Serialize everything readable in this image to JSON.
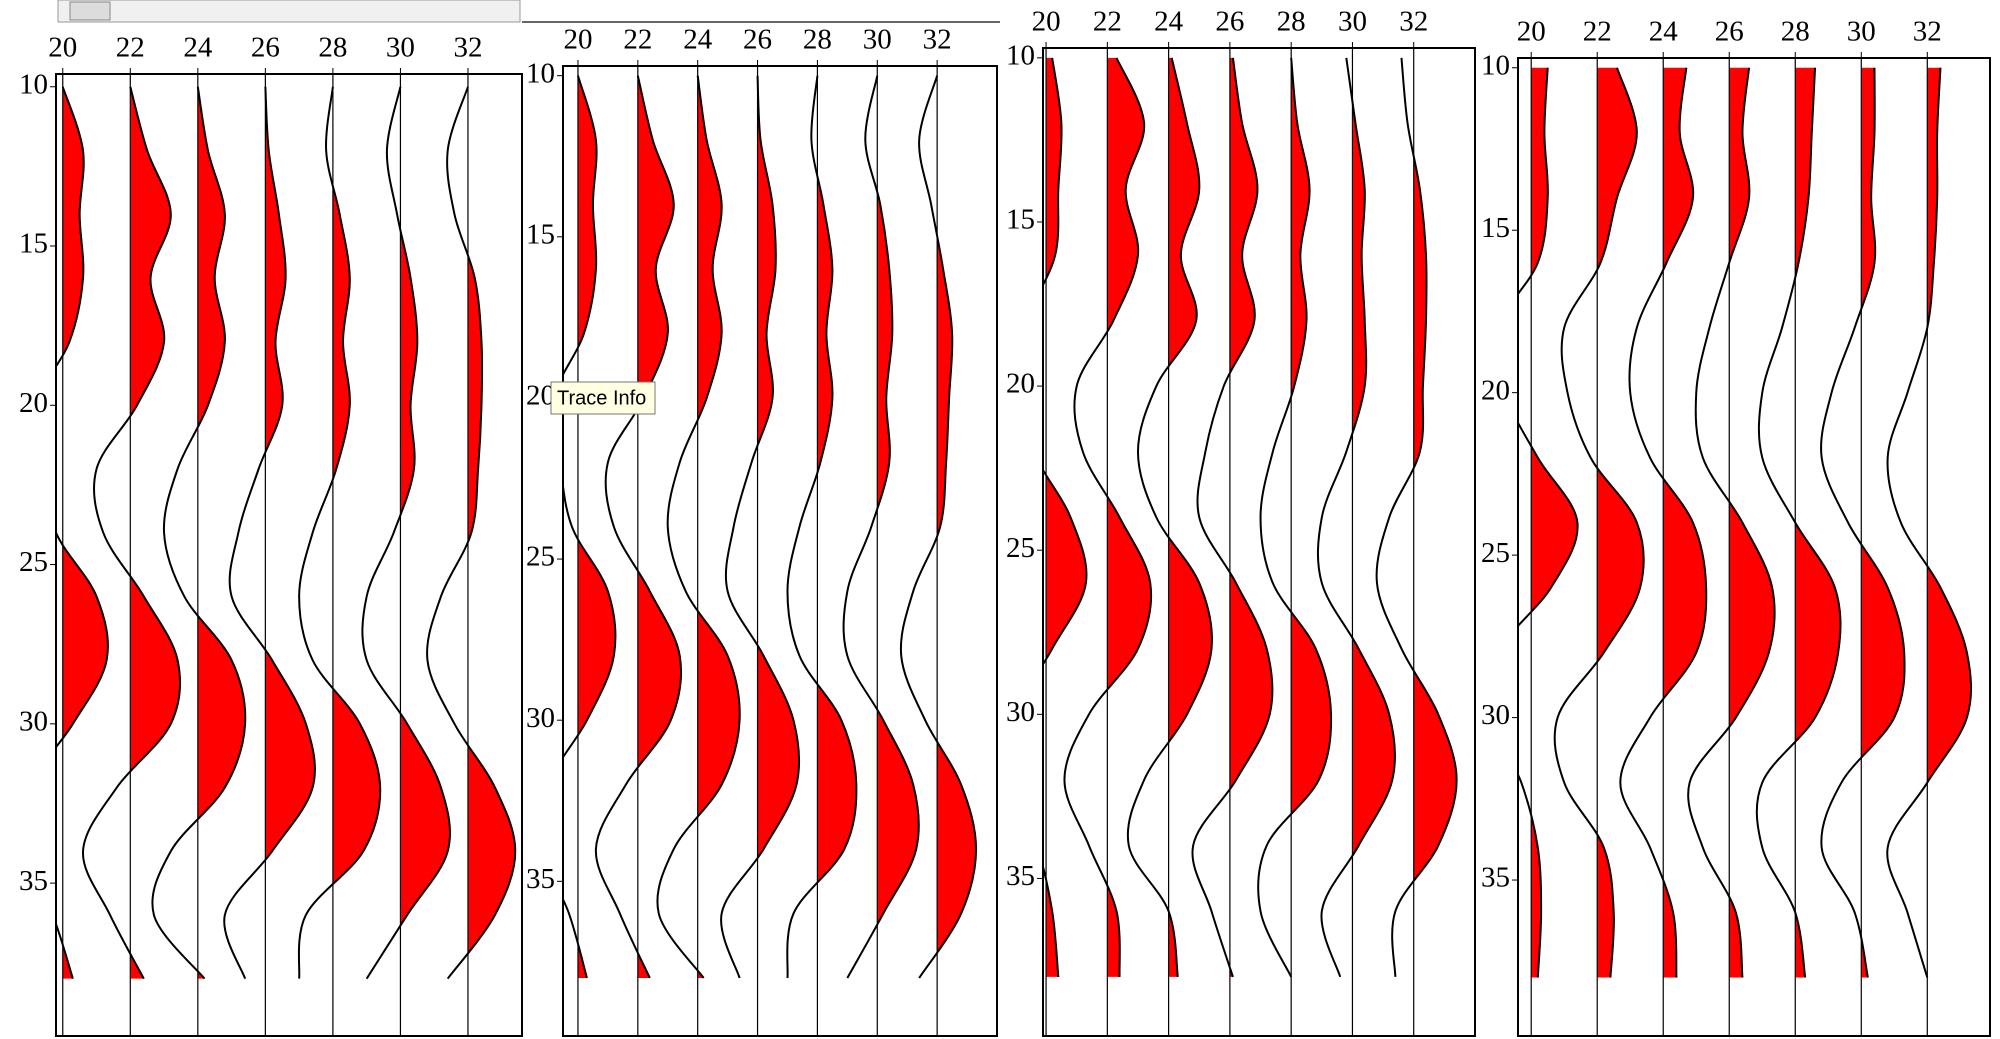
{
  "chart_data": [
    {
      "type": "wiggle",
      "xlim": [
        19.8,
        33.6
      ],
      "ylim": [
        9.6,
        39.8
      ],
      "xticks": [
        20,
        22,
        24,
        26,
        28,
        30,
        32
      ],
      "yticks": [
        10,
        15,
        20,
        25,
        30,
        35
      ],
      "color": "#ff0000",
      "depths": [
        10,
        12,
        14,
        16,
        18,
        20,
        22,
        24,
        26,
        28,
        30,
        32,
        34,
        36,
        38
      ],
      "traces": [
        {
          "offset": 20,
          "values": [
            0,
            0.6,
            0.5,
            0.6,
            0.2,
            -0.8,
            -0.6,
            -0.2,
            1.0,
            1.3,
            0.3,
            -1.0,
            -1.2,
            -0.3,
            0.3
          ]
        },
        {
          "offset": 22,
          "values": [
            0,
            0.5,
            1.2,
            0.6,
            1.0,
            0.2,
            -1.0,
            -0.8,
            0.4,
            1.4,
            1.2,
            -0.4,
            -1.4,
            -0.6,
            0.4
          ]
        },
        {
          "offset": 24,
          "values": [
            0,
            0.3,
            0.8,
            0.5,
            0.8,
            0.3,
            -0.6,
            -1.0,
            -0.4,
            1.0,
            1.4,
            0.8,
            -0.8,
            -1.3,
            0.2
          ]
        },
        {
          "offset": 26,
          "values": [
            0,
            0.1,
            0.4,
            0.6,
            0.3,
            0.5,
            -0.2,
            -0.8,
            -1.0,
            0.2,
            1.2,
            1.4,
            0.2,
            -1.2,
            -0.6
          ]
        },
        {
          "offset": 28,
          "values": [
            0,
            -0.2,
            0.2,
            0.5,
            0.3,
            0.5,
            0.1,
            -0.6,
            -1.0,
            -0.6,
            0.8,
            1.4,
            0.9,
            -0.8,
            -1.0
          ]
        },
        {
          "offset": 30,
          "values": [
            0,
            -0.4,
            -0.1,
            0.3,
            0.5,
            0.3,
            0.4,
            -0.2,
            -1.0,
            -1.0,
            0.2,
            1.2,
            1.4,
            0.2,
            -1.0
          ]
        },
        {
          "offset": 32,
          "values": [
            0,
            -0.6,
            -0.4,
            0.2,
            0.4,
            0.4,
            0.3,
            0.1,
            -0.8,
            -1.2,
            -0.4,
            0.8,
            1.4,
            0.8,
            -0.6
          ]
        }
      ]
    },
    {
      "type": "wiggle",
      "xlim": [
        19.5,
        34.0
      ],
      "ylim": [
        9.7,
        39.8
      ],
      "xticks": [
        20,
        22,
        24,
        26,
        28,
        30,
        32
      ],
      "yticks": [
        10,
        15,
        20,
        25,
        30,
        35
      ],
      "color": "#ff0000",
      "depths": [
        10,
        12,
        14,
        16,
        18,
        20,
        22,
        24,
        26,
        28,
        30,
        32,
        34,
        36,
        38
      ],
      "traces": [
        {
          "offset": 20,
          "values": [
            0,
            0.6,
            0.5,
            0.6,
            0.2,
            -0.8,
            -0.6,
            -0.2,
            1.0,
            1.2,
            0.3,
            -1.0,
            -1.2,
            -0.3,
            0.3
          ]
        },
        {
          "offset": 22,
          "values": [
            0,
            0.5,
            1.2,
            0.6,
            1.0,
            0.2,
            -1.0,
            -0.8,
            0.4,
            1.4,
            1.1,
            -0.4,
            -1.4,
            -0.6,
            0.4
          ]
        },
        {
          "offset": 24,
          "values": [
            0,
            0.3,
            0.8,
            0.5,
            0.8,
            0.3,
            -0.6,
            -1.0,
            -0.4,
            1.0,
            1.4,
            0.8,
            -0.8,
            -1.3,
            0.2
          ]
        },
        {
          "offset": 26,
          "values": [
            0,
            0.1,
            0.5,
            0.6,
            0.3,
            0.5,
            -0.2,
            -0.8,
            -1.0,
            0.2,
            1.2,
            1.3,
            0.2,
            -1.2,
            -0.6
          ]
        },
        {
          "offset": 28,
          "values": [
            0,
            -0.2,
            0.2,
            0.5,
            0.3,
            0.5,
            0.1,
            -0.6,
            -1.0,
            -0.6,
            0.8,
            1.3,
            0.9,
            -0.8,
            -1.0
          ]
        },
        {
          "offset": 30,
          "values": [
            0,
            -0.4,
            0.1,
            0.4,
            0.5,
            0.3,
            0.4,
            -0.2,
            -1.0,
            -1.0,
            0.2,
            1.2,
            1.3,
            0.2,
            -1.0
          ]
        },
        {
          "offset": 32,
          "values": [
            0,
            -0.6,
            -0.2,
            0.2,
            0.5,
            0.4,
            0.3,
            0.1,
            -0.8,
            -1.2,
            -0.4,
            0.8,
            1.3,
            0.8,
            -0.6
          ]
        }
      ]
    },
    {
      "type": "wiggle",
      "xlim": [
        19.9,
        34.0
      ],
      "ylim": [
        9.7,
        39.8
      ],
      "xticks": [
        20,
        22,
        24,
        26,
        28,
        30,
        32
      ],
      "yticks": [
        10,
        15,
        20,
        25,
        30,
        35
      ],
      "color": "#ff0000",
      "depths": [
        10,
        12,
        14,
        16,
        18,
        20,
        22,
        24,
        26,
        28,
        30,
        32,
        34,
        36,
        38
      ],
      "traces": [
        {
          "offset": 20,
          "values": [
            0.2,
            0.5,
            0.4,
            0.3,
            -0.6,
            -0.8,
            -0.4,
            0.8,
            1.3,
            0.2,
            -1.0,
            -1.2,
            -0.3,
            0.2,
            0.4
          ]
        },
        {
          "offset": 22,
          "values": [
            0.3,
            1.2,
            0.6,
            1.0,
            0.2,
            -1.0,
            -0.8,
            0.4,
            1.4,
            1.0,
            -0.6,
            -1.4,
            -0.6,
            0.3,
            0.4
          ]
        },
        {
          "offset": 24,
          "values": [
            0.1,
            0.6,
            1.0,
            0.4,
            0.9,
            -0.4,
            -1.0,
            -0.4,
            1.0,
            1.4,
            0.6,
            -0.8,
            -1.3,
            0.0,
            0.3
          ]
        },
        {
          "offset": 26,
          "values": [
            0.1,
            0.4,
            0.9,
            0.4,
            0.8,
            -0.2,
            -0.8,
            -1.0,
            0.2,
            1.2,
            1.3,
            0.2,
            -1.2,
            -0.6,
            0.1
          ]
        },
        {
          "offset": 28,
          "values": [
            0.0,
            0.2,
            0.6,
            0.3,
            0.5,
            0.1,
            -0.6,
            -1.0,
            -0.6,
            0.8,
            1.3,
            0.9,
            -0.8,
            -1.0,
            0.0
          ]
        },
        {
          "offset": 30,
          "values": [
            -0.2,
            0.1,
            0.4,
            0.3,
            0.4,
            0.4,
            -0.2,
            -1.0,
            -1.0,
            0.2,
            1.2,
            1.3,
            0.2,
            -1.0,
            -0.4
          ]
        },
        {
          "offset": 32,
          "values": [
            -0.4,
            -0.2,
            0.2,
            0.4,
            0.4,
            0.3,
            0.2,
            -0.8,
            -1.2,
            -0.4,
            0.8,
            1.4,
            0.8,
            -0.6,
            -0.6
          ]
        }
      ]
    },
    {
      "type": "wiggle",
      "xlim": [
        19.6,
        33.9
      ],
      "ylim": [
        9.7,
        39.8
      ],
      "xticks": [
        20,
        22,
        24,
        26,
        28,
        30,
        32
      ],
      "yticks": [
        10,
        15,
        20,
        25,
        30,
        35
      ],
      "color": "#ff0000",
      "depths": [
        10,
        12,
        14,
        16,
        18,
        20,
        22,
        24,
        26,
        28,
        30,
        32,
        34,
        36,
        38
      ],
      "traces": [
        {
          "offset": 20,
          "values": [
            0.5,
            0.4,
            0.5,
            0.2,
            -1.0,
            -0.8,
            0.2,
            1.4,
            0.6,
            -1.0,
            -1.2,
            -0.3,
            0.2,
            0.3,
            0.2
          ]
        },
        {
          "offset": 22,
          "values": [
            0.6,
            1.2,
            0.6,
            0.1,
            -1.0,
            -0.9,
            -0.2,
            1.2,
            1.3,
            0.2,
            -1.2,
            -1.0,
            0.2,
            0.5,
            0.4
          ]
        },
        {
          "offset": 24,
          "values": [
            0.7,
            0.5,
            0.9,
            0.1,
            -0.8,
            -1.0,
            -0.4,
            0.9,
            1.3,
            1.0,
            -0.4,
            -1.3,
            -0.4,
            0.3,
            0.4
          ]
        },
        {
          "offset": 26,
          "values": [
            0.6,
            0.4,
            0.6,
            0.0,
            -0.6,
            -1.0,
            -0.8,
            0.4,
            1.3,
            1.2,
            0.2,
            -1.2,
            -0.8,
            0.2,
            0.4
          ]
        },
        {
          "offset": 28,
          "values": [
            0.6,
            0.5,
            0.4,
            0.1,
            -0.4,
            -1.0,
            -1.0,
            0.0,
            1.2,
            1.3,
            0.6,
            -1.0,
            -1.0,
            0.0,
            0.3
          ]
        },
        {
          "offset": 30,
          "values": [
            0.4,
            0.4,
            0.3,
            0.4,
            -0.2,
            -0.9,
            -1.2,
            -0.4,
            0.8,
            1.3,
            1.0,
            -0.6,
            -1.2,
            -0.2,
            0.2
          ]
        },
        {
          "offset": 32,
          "values": [
            0.4,
            0.3,
            0.3,
            0.2,
            0.0,
            -0.6,
            -1.2,
            -0.8,
            0.4,
            1.2,
            1.2,
            0.0,
            -1.2,
            -0.6,
            0.0
          ]
        }
      ]
    }
  ],
  "tooltip": "Trace Info"
}
